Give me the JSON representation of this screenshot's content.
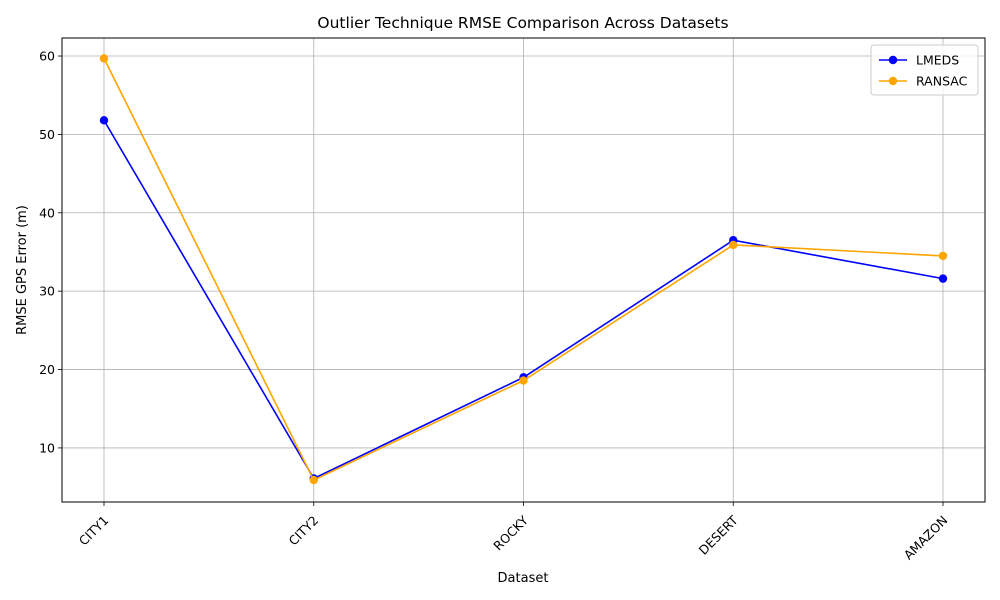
{
  "chart_data": {
    "type": "line",
    "title": "Outlier Technique RMSE Comparison Across Datasets",
    "xlabel": "Dataset",
    "ylabel": "RMSE GPS Error (m)",
    "categories": [
      "CITY1",
      "CITY2",
      "ROCKY",
      "DESERT",
      "AMAZON"
    ],
    "ylim": [
      3.1,
      62.3
    ],
    "yticks": [
      10,
      20,
      30,
      40,
      50,
      60
    ],
    "grid": true,
    "legend_position": "top-right",
    "series": [
      {
        "name": "LMEDS",
        "color": "#0000ff",
        "values": [
          51.8,
          6.1,
          19.0,
          36.5,
          31.6
        ]
      },
      {
        "name": "RANSAC",
        "color": "#ffa500",
        "values": [
          59.7,
          5.9,
          18.6,
          35.9,
          34.5
        ]
      }
    ]
  }
}
